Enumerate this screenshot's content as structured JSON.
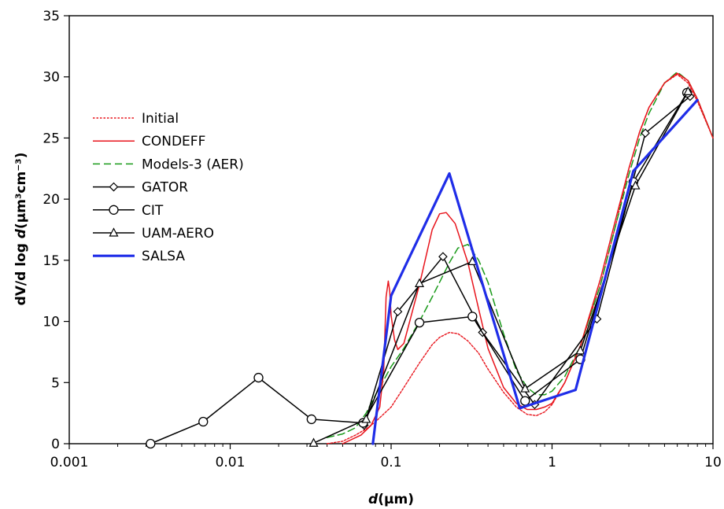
{
  "chart_data": {
    "type": "line",
    "x_scale": "log",
    "xlim": [
      0.001,
      10
    ],
    "ylim": [
      0,
      35
    ],
    "x_ticks": [
      0.001,
      0.01,
      0.1,
      1,
      10
    ],
    "x_tick_labels": [
      "0.001",
      "0.01",
      "0.1",
      "1",
      "10"
    ],
    "y_ticks": [
      0,
      5,
      10,
      15,
      20,
      25,
      30,
      35
    ],
    "y_tick_labels": [
      "0",
      "5",
      "10",
      "15",
      "20",
      "25",
      "30",
      "35"
    ],
    "xlabel": {
      "italic": "d",
      "rest": "(µm)"
    },
    "ylabel": {
      "pre": "dV/d log ",
      "italic": "d",
      "rest": "(µm³cm⁻³)"
    },
    "grid": false,
    "legend_position": "left",
    "series": [
      {
        "name": "Initial",
        "color": "#e8141c",
        "style": "dotted",
        "marker": "none",
        "x": [
          0.04,
          0.05,
          0.06,
          0.07,
          0.08,
          0.1,
          0.12,
          0.15,
          0.18,
          0.2,
          0.23,
          0.26,
          0.3,
          0.35,
          0.4,
          0.5,
          0.6,
          0.7,
          0.8,
          0.9,
          1.0,
          1.2,
          1.5,
          2.0,
          2.5,
          3.0,
          3.5,
          4.0,
          5.0,
          6.0,
          7.0,
          8.0,
          10.0
        ],
        "y": [
          0,
          0.2,
          0.7,
          1.2,
          1.8,
          3.0,
          4.6,
          6.6,
          8.1,
          8.7,
          9.1,
          9.0,
          8.4,
          7.4,
          6.1,
          4.2,
          3.0,
          2.4,
          2.3,
          2.6,
          3.2,
          5.0,
          8.0,
          13.0,
          18.0,
          22.5,
          25.5,
          27.5,
          29.5,
          30.2,
          29.5,
          28.0,
          25.0
        ]
      },
      {
        "name": "CONDEFF",
        "color": "#e8141c",
        "style": "solid",
        "marker": "none",
        "x": [
          0.05,
          0.065,
          0.075,
          0.085,
          0.09,
          0.093,
          0.096,
          0.098,
          0.1,
          0.105,
          0.11,
          0.12,
          0.15,
          0.18,
          0.2,
          0.22,
          0.25,
          0.3,
          0.35,
          0.4,
          0.5,
          0.6,
          0.7,
          0.8,
          0.9,
          1.0,
          1.2,
          1.5,
          2.0,
          2.5,
          3.0,
          3.5,
          4.0,
          5.0,
          6.0,
          7.0,
          8.0,
          10.0
        ],
        "y": [
          0,
          0.7,
          1.5,
          3.0,
          6.0,
          12.0,
          13.3,
          12.5,
          10.5,
          8.5,
          7.7,
          8.2,
          13.0,
          17.5,
          18.8,
          18.9,
          18.0,
          14.8,
          11.0,
          7.8,
          4.6,
          3.3,
          2.8,
          2.8,
          3.0,
          3.3,
          5.0,
          8.0,
          13.5,
          18.5,
          22.5,
          25.5,
          27.5,
          29.5,
          30.3,
          29.7,
          28.2,
          25.0
        ]
      },
      {
        "name": "Models-3 (AER)",
        "color": "#1a9a1a",
        "style": "dashed",
        "marker": "none",
        "x": [
          0.04,
          0.05,
          0.06,
          0.07,
          0.08,
          0.09,
          0.1,
          0.12,
          0.15,
          0.18,
          0.2,
          0.23,
          0.26,
          0.3,
          0.35,
          0.4,
          0.5,
          0.6,
          0.7,
          0.8,
          0.9,
          1.0,
          1.2,
          1.5,
          2.0,
          2.5,
          3.0,
          3.5,
          4.0,
          5.0,
          6.0,
          7.0,
          8.0,
          10.0
        ],
        "y": [
          0.5,
          0.8,
          1.3,
          2.5,
          4.0,
          5.2,
          6.3,
          7.8,
          10.0,
          12.0,
          13.2,
          14.8,
          16.0,
          16.3,
          15.0,
          13.2,
          9.0,
          6.0,
          4.6,
          4.0,
          4.0,
          4.3,
          5.5,
          8.0,
          13.0,
          18.0,
          22.0,
          25.0,
          27.0,
          29.5,
          30.4,
          29.7,
          28.2,
          25.0
        ]
      },
      {
        "name": "GATOR",
        "color": "#000000",
        "style": "solid",
        "marker": "diamond",
        "x": [
          0.068,
          0.11,
          0.21,
          0.37,
          0.78,
          1.9,
          3.8,
          7.2
        ],
        "y": [
          1.5,
          10.8,
          15.3,
          9.1,
          3.2,
          10.2,
          25.4,
          28.4
        ]
      },
      {
        "name": "CIT",
        "color": "#000000",
        "style": "solid",
        "marker": "circle",
        "x": [
          0.0032,
          0.0068,
          0.015,
          0.032,
          0.067,
          0.15,
          0.32,
          0.68,
          1.5,
          3.2,
          6.9
        ],
        "y": [
          0,
          1.8,
          5.4,
          2.0,
          1.7,
          9.9,
          10.4,
          3.5,
          6.9,
          21.4,
          28.7
        ]
      },
      {
        "name": "UAM-AERO",
        "color": "#000000",
        "style": "solid",
        "marker": "triangle",
        "x": [
          0.033,
          0.07,
          0.15,
          0.32,
          0.68,
          1.5,
          3.3,
          7.0
        ],
        "y": [
          0.05,
          2.0,
          13.1,
          14.9,
          4.5,
          7.6,
          21.1,
          28.8
        ]
      },
      {
        "name": "SALSA",
        "color": "#1f2de8",
        "style": "solid-thick",
        "marker": "none",
        "x": [
          0.077,
          0.1,
          0.23,
          0.63,
          1.4,
          3.2,
          8.0
        ],
        "y": [
          0,
          12.1,
          22.1,
          2.9,
          4.4,
          22.3,
          28.1
        ]
      }
    ]
  }
}
